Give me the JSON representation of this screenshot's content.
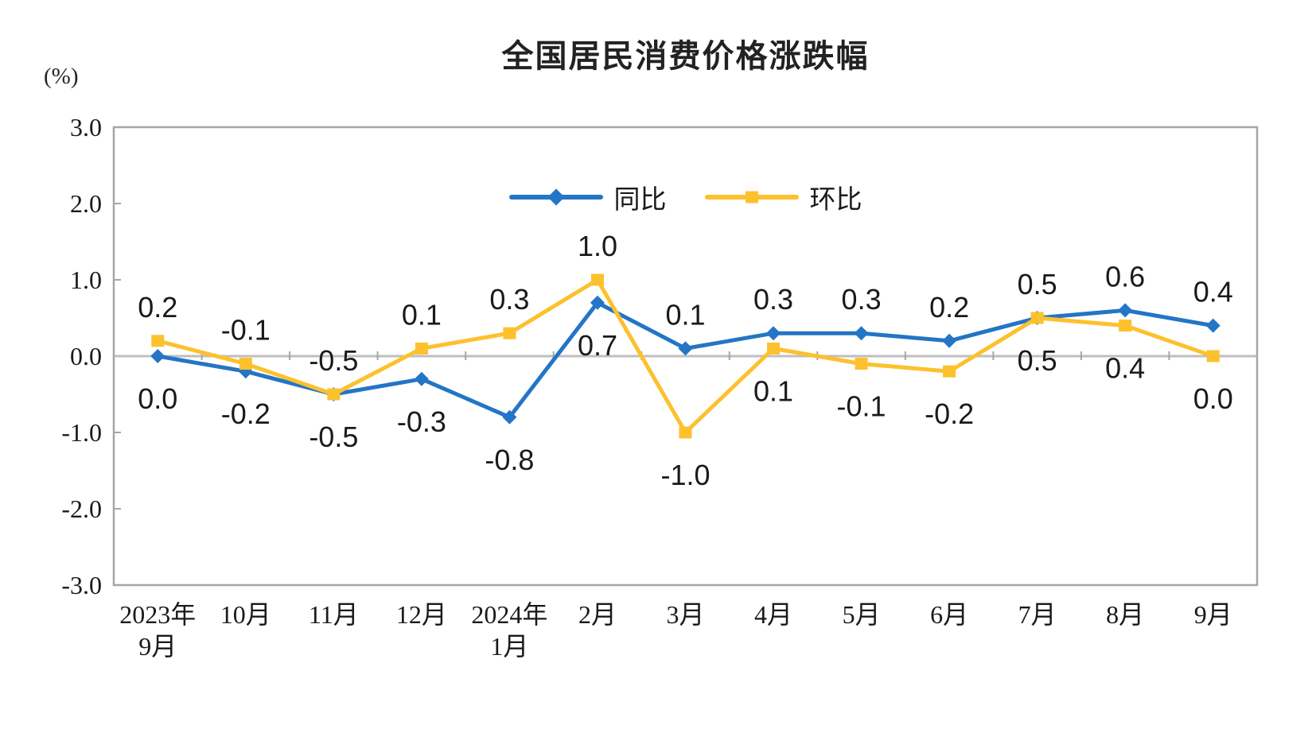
{
  "chart_data": {
    "type": "line",
    "title": "全国居民消费价格涨跌幅",
    "ylabel": "(%)",
    "ylim": [
      -3.0,
      3.0
    ],
    "y_tick_step": 1.0,
    "y_ticks": [
      "3.0",
      "2.0",
      "1.0",
      "0.0",
      "-1.0",
      "-2.0",
      "-3.0"
    ],
    "categories": [
      "2023年9月",
      "10月",
      "11月",
      "12月",
      "2024年1月",
      "2月",
      "3月",
      "4月",
      "5月",
      "6月",
      "7月",
      "8月",
      "9月"
    ],
    "category_lines": [
      [
        "2023年",
        "9月"
      ],
      [
        "10月"
      ],
      [
        "11月"
      ],
      [
        "12月"
      ],
      [
        "2024年",
        "1月"
      ],
      [
        "2月"
      ],
      [
        "3月"
      ],
      [
        "4月"
      ],
      [
        "5月"
      ],
      [
        "6月"
      ],
      [
        "7月"
      ],
      [
        "8月"
      ],
      [
        "9月"
      ]
    ],
    "series": [
      {
        "name": "同比",
        "color": "#2375C6",
        "marker": "diamond",
        "values": [
          0.0,
          -0.2,
          -0.5,
          -0.3,
          -0.8,
          0.7,
          0.1,
          0.3,
          0.3,
          0.2,
          0.5,
          0.6,
          0.4
        ],
        "labels": [
          "0.0",
          "-0.2",
          "-0.5",
          "-0.3",
          "-0.8",
          "0.7",
          "0.1",
          "0.3",
          "0.3",
          "0.2",
          "0.5",
          "0.6",
          "0.4"
        ],
        "label_position": [
          "below",
          "below",
          "below",
          "below",
          "below",
          "below",
          "above",
          "above",
          "above",
          "above",
          "above",
          "above",
          "above"
        ]
      },
      {
        "name": "环比",
        "color": "#FCC12D",
        "marker": "square",
        "values": [
          0.2,
          -0.1,
          -0.5,
          0.1,
          0.3,
          1.0,
          -1.0,
          0.1,
          -0.1,
          -0.2,
          0.5,
          0.4,
          0.0
        ],
        "labels": [
          "0.2",
          "-0.1",
          "-0.5",
          "0.1",
          "0.3",
          "1.0",
          "-1.0",
          "0.1",
          "-0.1",
          "-0.2",
          "0.5",
          "0.4",
          "0.0"
        ],
        "label_position": [
          "above",
          "above",
          "above",
          "above",
          "above",
          "above",
          "below",
          "below",
          "below",
          "below",
          "below",
          "below",
          "below"
        ]
      }
    ],
    "grid": "zero-line-only",
    "legend_position": "top-center-inside",
    "colors": {
      "axis_border": "#A6A6A6",
      "zero_line": "#BFBFBF",
      "tick": "#A6A6A6",
      "label_text": "#1A1A1A"
    }
  }
}
